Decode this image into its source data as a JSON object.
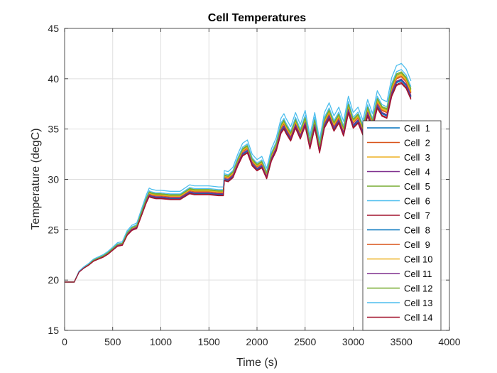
{
  "chart_data": {
    "type": "line",
    "title": "Cell Temperatures",
    "xlabel": "Time (s)",
    "ylabel": "Temperature (degC)",
    "xlim": [
      0,
      4000
    ],
    "ylim": [
      15,
      45
    ],
    "xticks": [
      0,
      500,
      1000,
      1500,
      2000,
      2500,
      3000,
      3500,
      4000
    ],
    "yticks": [
      15,
      20,
      25,
      30,
      35,
      40,
      45
    ],
    "grid": true,
    "legend_position": "lower-right",
    "base_x": [
      0,
      100,
      150,
      200,
      250,
      300,
      350,
      400,
      450,
      500,
      550,
      600,
      650,
      700,
      750,
      800,
      850,
      880,
      900,
      950,
      1000,
      1100,
      1200,
      1300,
      1350,
      1400,
      1500,
      1600,
      1650,
      1660,
      1700,
      1750,
      1800,
      1850,
      1900,
      1950,
      2000,
      2050,
      2100,
      2150,
      2200,
      2250,
      2280,
      2300,
      2350,
      2400,
      2450,
      2500,
      2550,
      2600,
      2650,
      2700,
      2750,
      2800,
      2850,
      2900,
      2950,
      3000,
      3050,
      3100,
      3150,
      3200,
      3250,
      3300,
      3350,
      3400,
      3450,
      3500,
      3550,
      3600
    ],
    "base_y": [
      19.8,
      19.8,
      20.8,
      21.2,
      21.5,
      21.9,
      22.1,
      22.3,
      22.6,
      23.0,
      23.4,
      23.5,
      24.5,
      25.0,
      25.2,
      26.5,
      27.8,
      28.4,
      28.3,
      28.2,
      28.2,
      28.1,
      28.1,
      28.7,
      28.6,
      28.6,
      28.6,
      28.5,
      28.5,
      30.0,
      29.9,
      30.3,
      31.5,
      32.5,
      32.8,
      31.5,
      31.0,
      31.3,
      30.2,
      32.0,
      33.0,
      34.8,
      35.2,
      34.8,
      34.0,
      35.3,
      34.2,
      35.5,
      33.2,
      35.3,
      32.8,
      35.3,
      36.2,
      35.0,
      35.8,
      34.5,
      36.8,
      35.3,
      35.8,
      34.6,
      36.5,
      35.2,
      37.3,
      36.5,
      36.3,
      38.5,
      39.6,
      39.8,
      39.3,
      38.2
    ],
    "series": [
      {
        "name": "Cell  1",
        "color": "#0072BD",
        "offset": 0.0
      },
      {
        "name": "Cell  2",
        "color": "#D95319",
        "offset": 0.45
      },
      {
        "name": "Cell  3",
        "color": "#EDB120",
        "offset": 0.6
      },
      {
        "name": "Cell  4",
        "color": "#7E2F8E",
        "offset": 0.1
      },
      {
        "name": "Cell  5",
        "color": "#77AC30",
        "offset": 0.8
      },
      {
        "name": "Cell  6",
        "color": "#4DBEEE",
        "offset": 1.0
      },
      {
        "name": "Cell  7",
        "color": "#A2142F",
        "offset": -0.25
      },
      {
        "name": "Cell  8",
        "color": "#0072BD",
        "offset": 0.05
      },
      {
        "name": "Cell  9",
        "color": "#D95319",
        "offset": 0.35
      },
      {
        "name": "Cell 10",
        "color": "#EDB120",
        "offset": 0.5
      },
      {
        "name": "Cell 11",
        "color": "#7E2F8E",
        "offset": 0.15
      },
      {
        "name": "Cell 12",
        "color": "#77AC30",
        "offset": 0.7
      },
      {
        "name": "Cell 13",
        "color": "#4DBEEE",
        "offset": 1.55
      },
      {
        "name": "Cell 14",
        "color": "#A2142F",
        "offset": -0.15
      }
    ]
  }
}
